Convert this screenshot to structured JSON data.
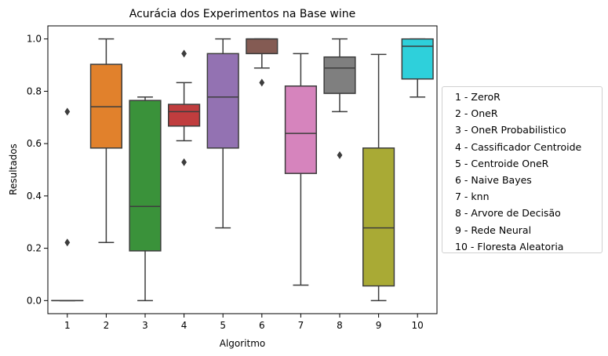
{
  "chart_data": {
    "type": "box",
    "title": "Acurácia dos Experimentos na Base wine",
    "xlabel": "Algoritmo",
    "ylabel": "Resultados",
    "ylim": [
      -0.05,
      1.05
    ],
    "yticks": [
      "0.0",
      "0.2",
      "0.4",
      "0.6",
      "0.8",
      "1.0"
    ],
    "ytick_values": [
      0.0,
      0.2,
      0.4,
      0.6,
      0.8,
      1.0
    ],
    "categories": [
      "1",
      "2",
      "3",
      "4",
      "5",
      "6",
      "7",
      "8",
      "9",
      "10"
    ],
    "boxes": [
      {
        "category": "1",
        "color": "#3274a1",
        "whisker_low": 0.0,
        "q1": 0.0,
        "median": 0.0,
        "q3": 0.0,
        "whisker_high": 0.0,
        "outliers": [
          0.222,
          0.722
        ]
      },
      {
        "category": "2",
        "color": "#e1812c",
        "whisker_low": 0.222,
        "q1": 0.583,
        "median": 0.741,
        "q3": 0.903,
        "whisker_high": 1.0,
        "outliers": []
      },
      {
        "category": "3",
        "color": "#3a923a",
        "whisker_low": 0.0,
        "q1": 0.19,
        "median": 0.36,
        "q3": 0.765,
        "whisker_high": 0.778,
        "outliers": []
      },
      {
        "category": "4",
        "color": "#c03d3e",
        "whisker_low": 0.611,
        "q1": 0.667,
        "median": 0.722,
        "q3": 0.75,
        "whisker_high": 0.833,
        "outliers": [
          0.529,
          0.944
        ]
      },
      {
        "category": "5",
        "color": "#9372b2",
        "whisker_low": 0.278,
        "q1": 0.583,
        "median": 0.778,
        "q3": 0.944,
        "whisker_high": 1.0,
        "outliers": []
      },
      {
        "category": "6",
        "color": "#845b53",
        "whisker_low": 0.889,
        "q1": 0.944,
        "median": 1.0,
        "q3": 1.0,
        "whisker_high": 1.0,
        "outliers": [
          0.833
        ]
      },
      {
        "category": "7",
        "color": "#d684bd",
        "whisker_low": 0.059,
        "q1": 0.486,
        "median": 0.639,
        "q3": 0.82,
        "whisker_high": 0.944,
        "outliers": []
      },
      {
        "category": "8",
        "color": "#7f7f7f",
        "whisker_low": 0.722,
        "q1": 0.792,
        "median": 0.889,
        "q3": 0.931,
        "whisker_high": 1.0,
        "outliers": [
          0.556
        ]
      },
      {
        "category": "9",
        "color": "#a9aa35",
        "whisker_low": 0.0,
        "q1": 0.056,
        "median": 0.278,
        "q3": 0.583,
        "whisker_high": 0.941,
        "outliers": []
      },
      {
        "category": "10",
        "color": "#2ed0db",
        "whisker_low": 0.778,
        "q1": 0.847,
        "median": 0.972,
        "q3": 1.0,
        "whisker_high": 1.0,
        "outliers": []
      }
    ],
    "legend": {
      "placement": "right, outside plot",
      "entries": [
        "1 - ZeroR",
        "2 - OneR",
        "3 - OneR Probabilistico",
        "4 - Cassificador Centroide",
        "5 - Centroide OneR",
        "6 - Naive Bayes",
        "7 - knn",
        "8 - Arvore de Decisão",
        "9 - Rede Neural",
        "10 - Floresta Aleatoria"
      ]
    },
    "stray_marker": {
      "shape": "diamond",
      "color": "#3d3d3d",
      "note_value": 0.0
    }
  }
}
